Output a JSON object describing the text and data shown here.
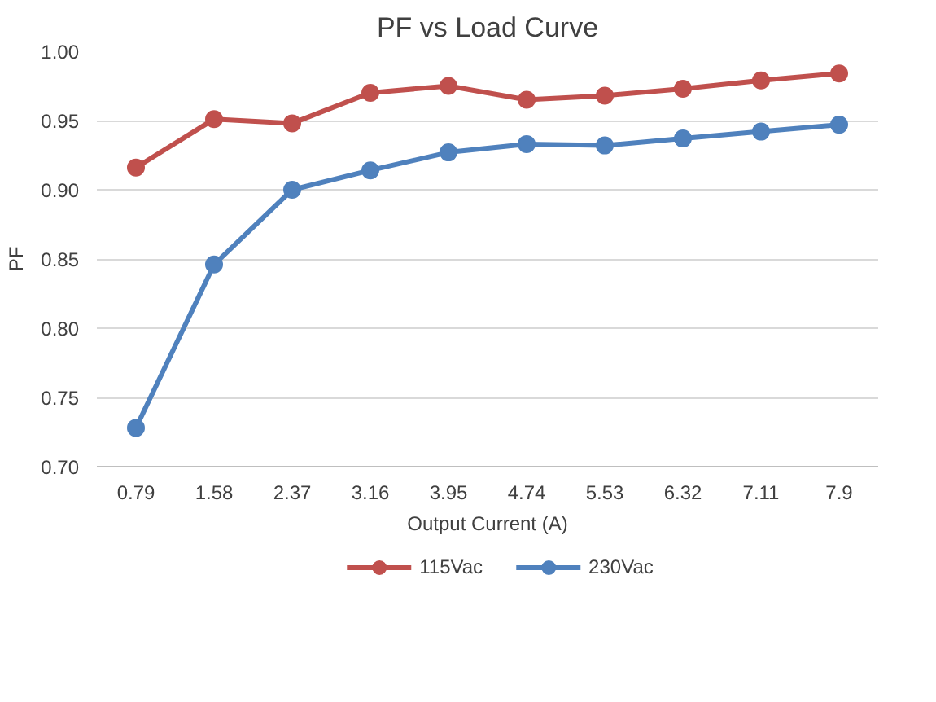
{
  "chart_data": {
    "type": "line",
    "title": "PF vs Load Curve",
    "xlabel": "Output Current (A)",
    "ylabel": "PF",
    "categories": [
      "0.79",
      "1.58",
      "2.37",
      "3.16",
      "3.95",
      "4.74",
      "5.53",
      "6.32",
      "7.11",
      "7.9"
    ],
    "series": [
      {
        "name": "115Vac",
        "color": "#c0504d",
        "values": [
          0.916,
          0.951,
          0.948,
          0.97,
          0.975,
          0.965,
          0.968,
          0.973,
          0.979,
          0.984
        ]
      },
      {
        "name": "230Vac",
        "color": "#4f81bd",
        "values": [
          0.728,
          0.846,
          0.9,
          0.914,
          0.927,
          0.933,
          0.932,
          0.937,
          0.942,
          0.947
        ]
      }
    ],
    "ylim": [
      0.7,
      1.0
    ],
    "yticks": [
      {
        "value": 0.7,
        "label": "0.70"
      },
      {
        "value": 0.75,
        "label": "0.75"
      },
      {
        "value": 0.8,
        "label": "0.80"
      },
      {
        "value": 0.85,
        "label": "0.85"
      },
      {
        "value": 0.9,
        "label": "0.90"
      },
      {
        "value": 0.95,
        "label": "0.95"
      },
      {
        "value": 1.0,
        "label": "1.00"
      }
    ],
    "grid": "y",
    "legend": "bottom",
    "marker": "circle",
    "line_style": "solid"
  }
}
